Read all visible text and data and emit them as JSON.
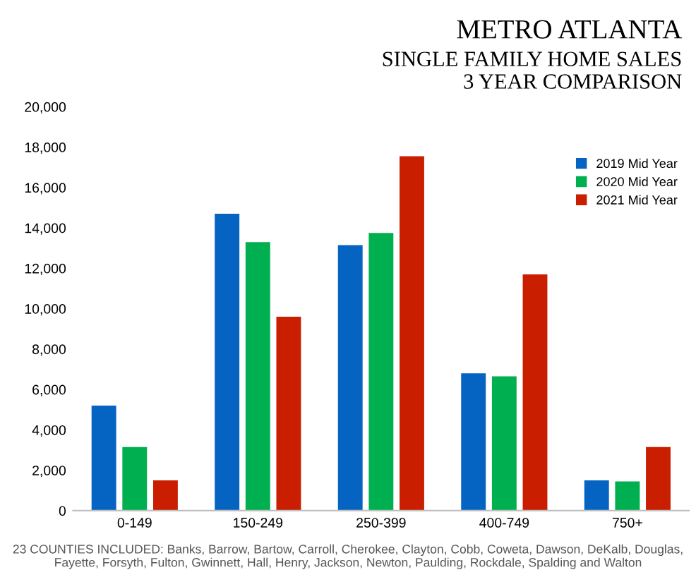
{
  "chart_data": {
    "type": "bar",
    "title": "METRO ATLANTA",
    "subtitle": "SINGLE FAMILY HOME SALES\n3 YEAR COMPARISON",
    "categories": [
      "0-149",
      "150-249",
      "250-399",
      "400-749",
      "750+"
    ],
    "series": [
      {
        "name": "2019 Mid Year",
        "color": "#0563c1",
        "values": [
          5200,
          14700,
          13150,
          6800,
          1500
        ]
      },
      {
        "name": "2020 Mid Year",
        "color": "#00b050",
        "values": [
          3150,
          13300,
          13750,
          6650,
          1450
        ]
      },
      {
        "name": "2021 Mid Year",
        "color": "#c91e00",
        "values": [
          1500,
          9600,
          17550,
          11700,
          3150
        ]
      }
    ],
    "ylim": [
      0,
      20000
    ],
    "yticks": [
      {
        "value": 0,
        "label": "0"
      },
      {
        "value": 2000,
        "label": "2,000"
      },
      {
        "value": 4000,
        "label": "4,000"
      },
      {
        "value": 6000,
        "label": "6,000"
      },
      {
        "value": 8000,
        "label": "8,000"
      },
      {
        "value": 10000,
        "label": "10,000"
      },
      {
        "value": 12000,
        "label": "12,000"
      },
      {
        "value": 14000,
        "label": "14,000"
      },
      {
        "value": 16000,
        "label": "16,000"
      },
      {
        "value": 18000,
        "label": "18,000"
      },
      {
        "value": 20000,
        "label": "20,000"
      }
    ],
    "legend": "top right",
    "annotations": [
      "23 COUNTIES INCLUDED: Banks, Barrow, Bartow, Carroll, Cherokee, Clayton, Cobb, Coweta, Dawson, DeKalb, Douglas, Fayette, Forsyth, Fulton, Gwinnett, Hall, Henry, Jackson, Newton, Paulding, Rockdale, Spalding and Walton"
    ]
  }
}
